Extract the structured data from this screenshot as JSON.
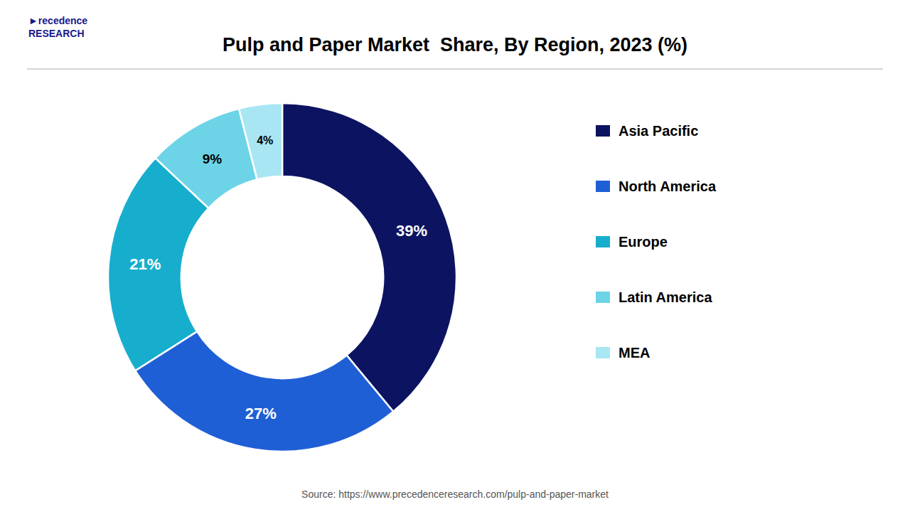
{
  "chart_data": {
    "type": "donut",
    "title": "Pulp and Paper Market  Share, By Region, 2023 (%)",
    "categories": [
      "Asia Pacific",
      "North America",
      "Europe",
      "Latin America",
      "MEA"
    ],
    "values": [
      39,
      27,
      21,
      9,
      4
    ],
    "value_labels": [
      "39%",
      "27%",
      "21%",
      "9%",
      "4%"
    ],
    "colors": [
      "#0c1461",
      "#1f5fd6",
      "#17aece",
      "#6dd4e8",
      "#a8e6f3"
    ],
    "data_labels": true,
    "legend": "right",
    "annotations": [
      "Source: https://www.precedenceresearch.com/pulp-and-paper-market",
      "►recedence\nRESEARCH"
    ]
  }
}
